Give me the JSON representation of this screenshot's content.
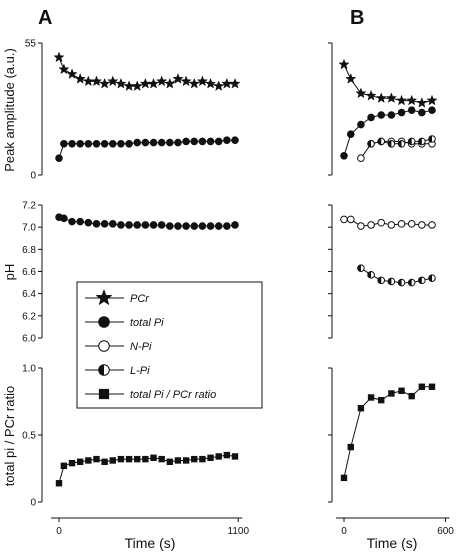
{
  "panels": {
    "a_label": "A",
    "b_label": "B"
  },
  "axes": {
    "top_ylabel": "Peak amplitude (a.u.)",
    "top_ticks": [
      "55",
      "0"
    ],
    "mid_ylabel": "pH",
    "mid_ticks": [
      "7.2",
      "7.0",
      "6.8",
      "6.6",
      "6.4",
      "6.2",
      "6.0"
    ],
    "bot_ylabel": "total pi / PCr ratio",
    "bot_ticks": [
      "1.0",
      "0.5",
      "0"
    ],
    "xlabel": "Time (s)",
    "a_xticks": [
      "0",
      "1100"
    ],
    "b_xticks": [
      "0",
      "600"
    ]
  },
  "legend": {
    "items": [
      {
        "marker": "star",
        "label": "PCr"
      },
      {
        "marker": "filled-circle",
        "label": "total Pi"
      },
      {
        "marker": "open-circle",
        "label": "N-Pi"
      },
      {
        "marker": "half-circle",
        "label": "L-Pi"
      },
      {
        "marker": "filled-square",
        "label": "total Pi / PCr ratio"
      }
    ]
  },
  "chart_data": [
    {
      "id": "A-top",
      "type": "line",
      "xlim": [
        0,
        1100
      ],
      "ylim": [
        0,
        55
      ],
      "xlabel": "Time (s)",
      "ylabel": "Peak amplitude (a.u.)",
      "series": [
        {
          "name": "PCr",
          "marker": "star",
          "x": [
            0,
            30,
            80,
            130,
            180,
            230,
            280,
            330,
            380,
            430,
            480,
            530,
            580,
            630,
            680,
            730,
            780,
            830,
            880,
            930,
            980,
            1030,
            1080
          ],
          "y": [
            49,
            44,
            42,
            40,
            39,
            39,
            38,
            39,
            38,
            37,
            37,
            38,
            38,
            39,
            38,
            40,
            39,
            38,
            39,
            38,
            37,
            38,
            38
          ]
        },
        {
          "name": "total Pi",
          "marker": "filled-circle",
          "x": [
            0,
            30,
            80,
            130,
            180,
            230,
            280,
            330,
            380,
            430,
            480,
            530,
            580,
            630,
            680,
            730,
            780,
            830,
            880,
            930,
            980,
            1030,
            1080
          ],
          "y": [
            7,
            13,
            13,
            13,
            13,
            13,
            13,
            13,
            13,
            13,
            13.5,
            13.5,
            13.5,
            13.5,
            13.5,
            13.5,
            14,
            14,
            14,
            14,
            14,
            14.5,
            14.5
          ]
        }
      ]
    },
    {
      "id": "A-mid",
      "type": "line",
      "xlim": [
        0,
        1100
      ],
      "ylim": [
        6.0,
        7.2
      ],
      "xlabel": "Time (s)",
      "ylabel": "pH",
      "series": [
        {
          "name": "total Pi",
          "marker": "filled-circle",
          "x": [
            0,
            30,
            80,
            130,
            180,
            230,
            280,
            330,
            380,
            430,
            480,
            530,
            580,
            630,
            680,
            730,
            780,
            830,
            880,
            930,
            980,
            1030,
            1080
          ],
          "y": [
            7.09,
            7.08,
            7.05,
            7.05,
            7.04,
            7.03,
            7.03,
            7.03,
            7.02,
            7.02,
            7.02,
            7.02,
            7.02,
            7.02,
            7.01,
            7.01,
            7.01,
            7.01,
            7.01,
            7.01,
            7.01,
            7.01,
            7.02
          ]
        }
      ]
    },
    {
      "id": "A-bot",
      "type": "line",
      "xlim": [
        0,
        1100
      ],
      "ylim": [
        0,
        1.0
      ],
      "xlabel": "Time (s)",
      "ylabel": "total pi / PCr ratio",
      "series": [
        {
          "name": "total Pi / PCr ratio",
          "marker": "filled-square",
          "x": [
            0,
            30,
            80,
            130,
            180,
            230,
            280,
            330,
            380,
            430,
            480,
            530,
            580,
            630,
            680,
            730,
            780,
            830,
            880,
            930,
            980,
            1030,
            1080
          ],
          "y": [
            0.14,
            0.27,
            0.29,
            0.3,
            0.31,
            0.32,
            0.3,
            0.31,
            0.32,
            0.32,
            0.32,
            0.32,
            0.33,
            0.32,
            0.3,
            0.31,
            0.31,
            0.32,
            0.32,
            0.33,
            0.34,
            0.35,
            0.34
          ]
        }
      ]
    },
    {
      "id": "B-top",
      "type": "line",
      "xlim": [
        0,
        600
      ],
      "ylim": [
        0,
        55
      ],
      "xlabel": "Time (s)",
      "ylabel": "Peak amplitude (a.u.)",
      "series": [
        {
          "name": "PCr",
          "marker": "star",
          "x": [
            0,
            40,
            100,
            160,
            220,
            280,
            340,
            400,
            460,
            520
          ],
          "y": [
            46,
            40,
            34,
            33,
            32,
            32,
            31,
            31,
            30,
            31
          ]
        },
        {
          "name": "total Pi",
          "marker": "filled-circle",
          "x": [
            0,
            40,
            100,
            160,
            220,
            280,
            340,
            400,
            460,
            520
          ],
          "y": [
            8,
            17,
            21,
            24,
            25,
            25,
            26,
            27,
            26,
            27
          ]
        },
        {
          "name": "N-Pi",
          "marker": "open-circle",
          "x": [
            100,
            160,
            220,
            280,
            340,
            400,
            460,
            520
          ],
          "y": [
            7,
            13,
            14,
            14,
            14,
            13,
            13,
            13
          ]
        },
        {
          "name": "L-Pi",
          "marker": "half-circle",
          "x": [
            160,
            220,
            280,
            340,
            400,
            460,
            520
          ],
          "y": [
            13,
            14,
            13,
            13,
            14,
            14,
            15
          ]
        }
      ]
    },
    {
      "id": "B-mid",
      "type": "line",
      "xlim": [
        0,
        600
      ],
      "ylim": [
        6.0,
        7.2
      ],
      "xlabel": "Time (s)",
      "ylabel": "pH",
      "series": [
        {
          "name": "N-Pi",
          "marker": "open-circle",
          "x": [
            0,
            40,
            100,
            160,
            220,
            280,
            340,
            400,
            460,
            520
          ],
          "y": [
            7.07,
            7.07,
            7.01,
            7.02,
            7.04,
            7.02,
            7.03,
            7.03,
            7.02,
            7.02
          ]
        },
        {
          "name": "L-Pi",
          "marker": "half-circle",
          "x": [
            100,
            160,
            220,
            280,
            340,
            400,
            460,
            520
          ],
          "y": [
            6.63,
            6.57,
            6.52,
            6.51,
            6.5,
            6.5,
            6.52,
            6.54
          ]
        }
      ]
    },
    {
      "id": "B-bot",
      "type": "line",
      "xlim": [
        0,
        600
      ],
      "ylim": [
        0,
        1.0
      ],
      "xlabel": "Time (s)",
      "ylabel": "total pi / PCr ratio",
      "series": [
        {
          "name": "total Pi / PCr ratio",
          "marker": "filled-square",
          "x": [
            0,
            40,
            100,
            160,
            220,
            280,
            340,
            400,
            460,
            520
          ],
          "y": [
            0.18,
            0.41,
            0.7,
            0.78,
            0.76,
            0.81,
            0.83,
            0.79,
            0.86,
            0.86
          ]
        }
      ]
    }
  ]
}
